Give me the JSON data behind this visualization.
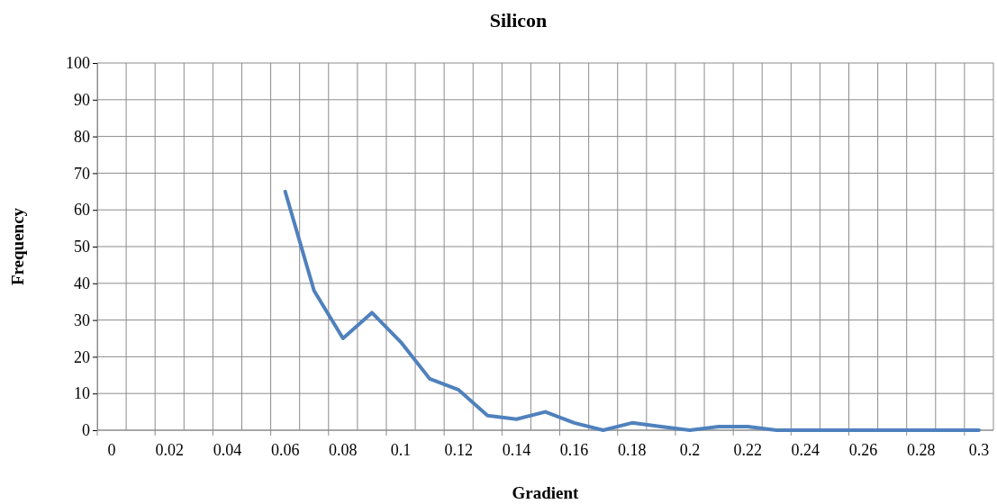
{
  "chart_data": {
    "type": "line",
    "title": "Silicon",
    "xlabel": "Gradient",
    "ylabel": "Frequency",
    "categories": [
      "0",
      null,
      "0.02",
      null,
      "0.04",
      null,
      "0.06",
      null,
      "0.08",
      null,
      "0.1",
      null,
      "0.12",
      null,
      "0.14",
      null,
      "0.16",
      null,
      "0.18",
      null,
      "0.2",
      null,
      "0.22",
      null,
      "0.24",
      null,
      "0.26",
      null,
      "0.28",
      null,
      "0.3"
    ],
    "series": [
      {
        "color": "#4f81bd",
        "values": [
          null,
          null,
          null,
          null,
          null,
          null,
          65,
          38,
          25,
          32,
          24,
          14,
          11,
          4,
          3,
          5,
          2,
          0,
          2,
          1,
          0,
          1,
          1,
          0,
          0,
          0,
          0,
          0,
          0,
          0,
          0
        ]
      }
    ],
    "ylim": [
      0,
      100
    ],
    "yticks": [
      0,
      10,
      20,
      30,
      40,
      50,
      60,
      70,
      80,
      90,
      100
    ],
    "grid": true,
    "marker": "none",
    "line_style": "solid"
  }
}
